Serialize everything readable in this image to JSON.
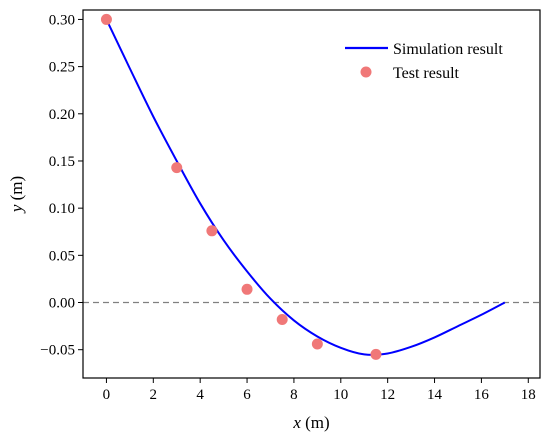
{
  "chart_data": {
    "type": "line",
    "xlabel_var": "x",
    "xlabel_unit": " (m)",
    "ylabel_var": "y",
    "ylabel_unit": " (m)",
    "xlim": [
      -1.0,
      18.5
    ],
    "ylim": [
      -0.08,
      0.31
    ],
    "xticks": [
      0,
      2,
      4,
      6,
      8,
      10,
      12,
      14,
      16,
      18
    ],
    "yticks": [
      -0.05,
      0.0,
      0.05,
      0.1,
      0.15,
      0.2,
      0.25,
      0.3
    ],
    "ytick_labels": [
      "−0.05",
      "0.00",
      "0.05",
      "0.10",
      "0.15",
      "0.20",
      "0.25",
      "0.30"
    ],
    "reference_line": {
      "y": 0.0,
      "style": "dashed",
      "color": "#808080"
    },
    "legend_position": "top-right",
    "series": [
      {
        "name": "Simulation result",
        "kind": "line",
        "color": "#0000ff",
        "x": [
          0,
          1,
          2,
          3,
          4,
          5,
          6,
          7,
          8,
          9,
          10,
          11,
          12,
          13,
          14,
          15,
          16,
          17
        ],
        "y": [
          0.3,
          0.248,
          0.197,
          0.15,
          0.105,
          0.066,
          0.033,
          0.004,
          -0.019,
          -0.036,
          -0.048,
          -0.055,
          -0.054,
          -0.047,
          -0.037,
          -0.025,
          -0.013,
          0.0
        ]
      },
      {
        "name": "Test result",
        "kind": "scatter",
        "color": "#f07878",
        "x": [
          0,
          3,
          4.5,
          6,
          7.5,
          9,
          11.5
        ],
        "y": [
          0.3,
          0.143,
          0.076,
          0.014,
          -0.018,
          -0.044,
          -0.055
        ]
      }
    ]
  }
}
